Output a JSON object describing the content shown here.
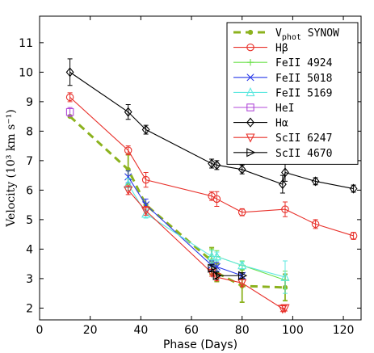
{
  "chart_data": {
    "type": "line",
    "xlabel": "Phase (Days)",
    "ylabel": "Velocity (10³ km s⁻¹)",
    "xlim": [
      0,
      127
    ],
    "ylim": [
      1.6,
      11.9
    ],
    "xticks": [
      "0",
      "20",
      "40",
      "60",
      "80",
      "100",
      "120"
    ],
    "yticks": [
      "2",
      "3",
      "4",
      "5",
      "6",
      "7",
      "8",
      "9",
      "10",
      "11"
    ],
    "legend_position": "top-right",
    "series": [
      {
        "name": "V_phot SYNOW",
        "color": "#8cb21e",
        "marker": "dot",
        "dash": true,
        "points": [
          [
            12,
            8.5,
            0
          ],
          [
            35,
            6.7,
            0.5
          ],
          [
            42,
            5.5,
            0
          ],
          [
            68,
            3.6,
            0.45
          ],
          [
            70,
            3.2,
            0.3
          ],
          [
            80,
            2.75,
            0.55
          ],
          [
            97,
            2.7,
            0.45
          ]
        ]
      },
      {
        "name": "Hβ",
        "color": "#e8302a",
        "marker": "circle",
        "dash": false,
        "points": [
          [
            12,
            9.15,
            0.15
          ],
          [
            35,
            7.35,
            0.15
          ],
          [
            42,
            6.35,
            0.25
          ],
          [
            68,
            5.8,
            0.15
          ],
          [
            70,
            5.7,
            0.25
          ],
          [
            80,
            5.25,
            0.12
          ],
          [
            97,
            5.35,
            0.25
          ],
          [
            109,
            4.85,
            0.15
          ],
          [
            124,
            4.45,
            0.12
          ]
        ]
      },
      {
        "name": "FeII 4924",
        "color": "#6be04a",
        "marker": "plus",
        "dash": false,
        "points": [
          [
            68,
            3.75,
            0.25
          ],
          [
            70,
            3.75,
            0.2
          ],
          [
            80,
            3.45,
            0.15
          ],
          [
            97,
            2.95,
            0.3
          ]
        ]
      },
      {
        "name": "FeII 5018",
        "color": "#2a3ae8",
        "marker": "x",
        "dash": false,
        "points": [
          [
            35,
            6.45,
            0.2
          ],
          [
            42,
            5.5,
            0.2
          ],
          [
            68,
            3.45,
            0.15
          ],
          [
            70,
            3.4,
            0.15
          ],
          [
            80,
            3.1,
            0.1
          ]
        ]
      },
      {
        "name": "FeII 5169",
        "color": "#5ee8e0",
        "marker": "triangle-up",
        "dash": false,
        "points": [
          [
            35,
            6.2,
            0.2
          ],
          [
            42,
            5.2,
            0.15
          ],
          [
            68,
            3.75,
            0.2
          ],
          [
            70,
            3.75,
            0.15
          ],
          [
            80,
            3.45,
            0.12
          ],
          [
            97,
            3.05,
            0.55
          ]
        ]
      },
      {
        "name": "HeI",
        "color": "#b048d8",
        "marker": "square",
        "dash": false,
        "points": [
          [
            12,
            8.65,
            0.15
          ]
        ]
      },
      {
        "name": "Hα",
        "color": "#000000",
        "marker": "diamond",
        "dash": false,
        "points": [
          [
            12,
            10.0,
            0.45
          ],
          [
            35,
            8.65,
            0.25
          ],
          [
            42,
            8.05,
            0.15
          ],
          [
            68,
            6.9,
            0.15
          ],
          [
            70,
            6.85,
            0.15
          ],
          [
            80,
            6.7,
            0.15
          ],
          [
            96,
            6.2,
            0.3
          ],
          [
            97,
            6.6,
            0.3
          ],
          [
            109,
            6.3,
            0.12
          ],
          [
            124,
            6.05,
            0.12
          ]
        ]
      },
      {
        "name": "ScII 6247",
        "color": "#e8302a",
        "marker": "triangle-down",
        "dash": false,
        "points": [
          [
            35,
            6.0,
            0.15
          ],
          [
            42,
            5.3,
            0.15
          ],
          [
            68,
            3.2,
            0.12
          ],
          [
            70,
            3.05,
            0.12
          ],
          [
            80,
            2.85,
            0.12
          ],
          [
            96,
            1.98,
            0.1
          ],
          [
            97,
            2.0,
            0.1
          ]
        ]
      },
      {
        "name": "ScII 4670",
        "color": "#000000",
        "marker": "triangle-right",
        "dash": false,
        "points": [
          [
            68,
            3.35,
            0.12
          ],
          [
            70,
            3.1,
            0.12
          ],
          [
            80,
            3.1,
            0.1
          ]
        ]
      }
    ]
  }
}
